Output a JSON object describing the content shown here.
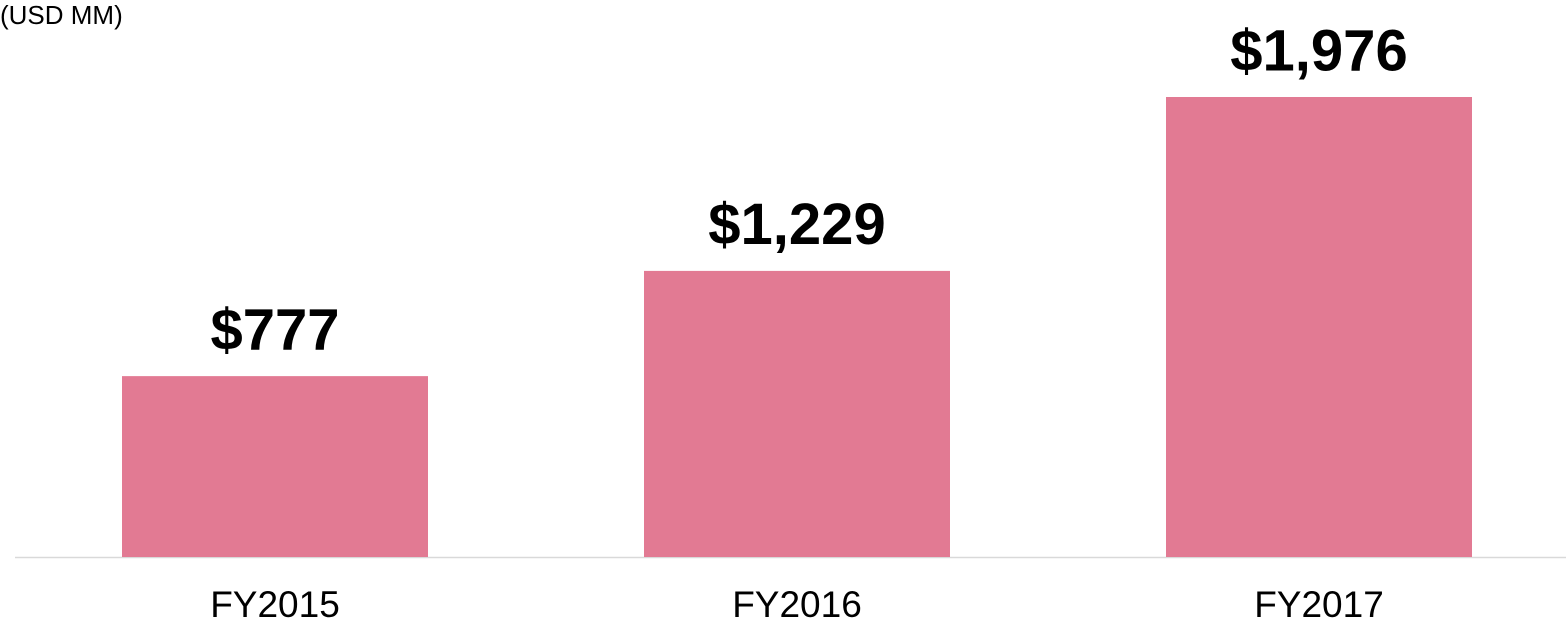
{
  "chart_data": {
    "type": "bar",
    "subtitle": "(USD MM)",
    "categories": [
      "FY2015",
      "FY2016",
      "FY2017"
    ],
    "values": [
      777,
      1229,
      1976
    ],
    "value_labels": [
      "$777",
      "$1,229",
      "$1,976"
    ],
    "color": "#e27a93"
  }
}
